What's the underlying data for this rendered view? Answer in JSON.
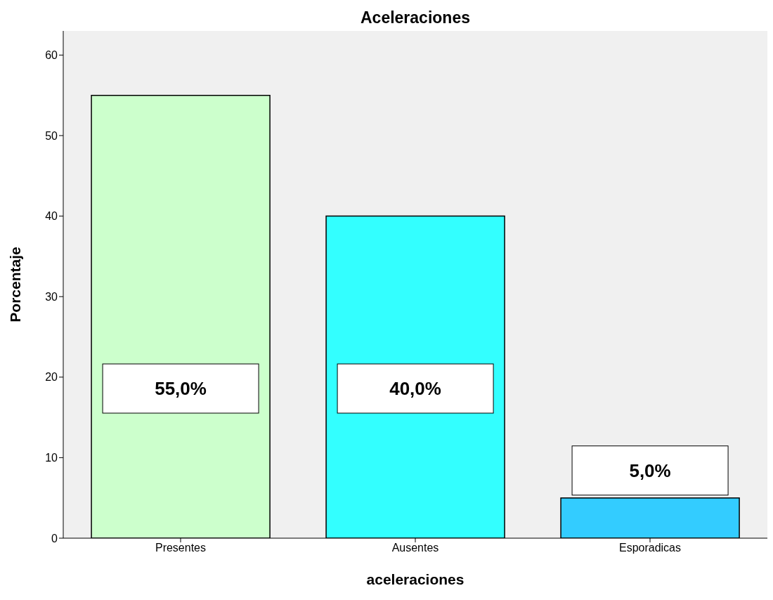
{
  "chart_data": {
    "type": "bar",
    "title": "Aceleraciones",
    "xlabel": "aceleraciones",
    "ylabel": "Porcentaje",
    "categories": [
      "Presentes",
      "Ausentes",
      "Esporadicas"
    ],
    "values": [
      55,
      40,
      5
    ],
    "colors": [
      "#ccffcc",
      "#33ffff",
      "#33ccff"
    ],
    "value_labels": [
      "55,0%",
      "40,0%",
      "5,0%"
    ],
    "ylim": [
      0,
      63
    ],
    "yticks": [
      0,
      10,
      20,
      30,
      40,
      50,
      60
    ]
  }
}
